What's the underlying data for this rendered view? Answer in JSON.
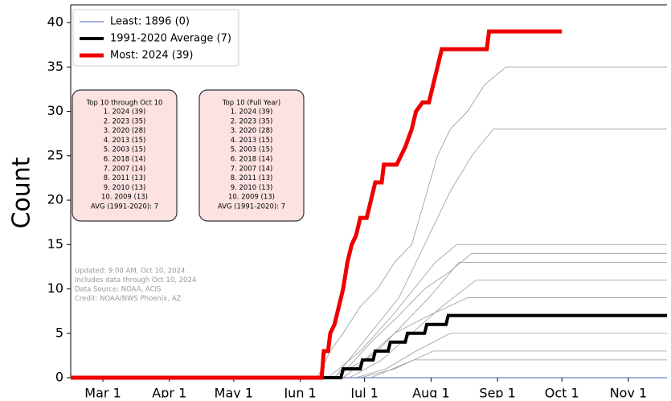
{
  "chart_data": {
    "type": "line",
    "ylabel": "Count",
    "xlim": [
      45,
      323
    ],
    "xticks": [
      {
        "value": 60,
        "label": "Mar 1"
      },
      {
        "value": 91,
        "label": "Apr 1"
      },
      {
        "value": 121,
        "label": "May 1"
      },
      {
        "value": 152,
        "label": "Jun 1"
      },
      {
        "value": 182,
        "label": "Jul 1"
      },
      {
        "value": 213,
        "label": "Aug 1"
      },
      {
        "value": 244,
        "label": "Sep 1"
      },
      {
        "value": 274,
        "label": "Oct 1"
      },
      {
        "value": 305,
        "label": "Nov 1"
      }
    ],
    "ylim": [
      0,
      42
    ],
    "yticks": [
      0,
      5,
      10,
      15,
      20,
      25,
      30,
      35,
      40
    ],
    "legend": "upper left",
    "other_color": "#9a9a9a",
    "other_series": [
      {
        "x": [
          45,
          160,
          166,
          172,
          180,
          188,
          196,
          204,
          210,
          216,
          222,
          230,
          238,
          248,
          323
        ],
        "values": [
          0,
          0,
          3,
          5,
          8,
          10,
          13,
          15,
          20,
          25,
          28,
          30,
          33,
          35,
          35
        ]
      },
      {
        "x": [
          45,
          168,
          178,
          188,
          198,
          206,
          214,
          222,
          232,
          242,
          323
        ],
        "values": [
          0,
          0,
          3,
          6,
          9,
          13,
          17,
          21,
          25,
          28,
          28
        ]
      },
      {
        "x": [
          45,
          165,
          180,
          195,
          205,
          215,
          225,
          323
        ],
        "values": [
          0,
          0,
          3,
          7,
          10,
          13,
          15,
          15
        ]
      },
      {
        "x": [
          45,
          170,
          185,
          198,
          210,
          222,
          232,
          323
        ],
        "values": [
          0,
          0,
          4,
          7,
          10,
          12,
          14,
          14
        ]
      },
      {
        "x": [
          45,
          172,
          188,
          200,
          212,
          226,
          323
        ],
        "values": [
          0,
          0,
          3,
          6,
          9,
          13,
          13
        ]
      },
      {
        "x": [
          45,
          175,
          190,
          204,
          218,
          234,
          323
        ],
        "values": [
          0,
          0,
          2,
          5,
          8,
          11,
          11
        ]
      },
      {
        "x": [
          45,
          167,
          182,
          196,
          212,
          230,
          323
        ],
        "values": [
          0,
          0,
          2,
          5,
          7,
          9,
          9
        ]
      },
      {
        "x": [
          45,
          178,
          192,
          206,
          222,
          323
        ],
        "values": [
          0,
          0,
          1,
          3,
          5,
          5
        ]
      },
      {
        "x": [
          45,
          180,
          196,
          214,
          323
        ],
        "values": [
          0,
          0,
          1,
          3,
          3
        ]
      },
      {
        "x": [
          45,
          185,
          205,
          323
        ],
        "values": [
          0,
          0,
          2,
          2
        ]
      }
    ],
    "series": [
      {
        "name": "Least: 1896 (0)",
        "color": "#4a5fc1",
        "width": 1,
        "x": [
          45,
          323
        ],
        "values": [
          0,
          0
        ]
      },
      {
        "name": "1991-2020 Average (7)",
        "color": "#000000",
        "width": 4,
        "x": [
          45,
          171,
          172,
          180,
          181,
          186,
          187,
          193,
          194,
          201,
          202,
          210,
          211,
          220,
          221,
          323
        ],
        "values": [
          0,
          0,
          1,
          1,
          2,
          2,
          3,
          3,
          4,
          4,
          5,
          5,
          6,
          6,
          7,
          7
        ]
      },
      {
        "name": "Most: 2024 (39)",
        "color": "#ee0000",
        "width": 5,
        "x": [
          45,
          162,
          163,
          165,
          166,
          168,
          170,
          172,
          174,
          176,
          178,
          180,
          183,
          185,
          187,
          190,
          191,
          197,
          199,
          201,
          204,
          206,
          209,
          212,
          214,
          216,
          218,
          239,
          240,
          274
        ],
        "values": [
          0,
          0,
          3,
          3,
          5,
          6,
          8,
          10,
          13,
          15,
          16,
          18,
          18,
          20,
          22,
          22,
          24,
          24,
          25,
          26,
          28,
          30,
          31,
          31,
          33,
          35,
          37,
          37,
          39,
          39
        ]
      }
    ],
    "boxes": [
      {
        "title": "Top 10 through Oct 10",
        "lines": [
          "1. 2024 (39)",
          "2. 2023 (35)",
          "3. 2020 (28)",
          "4. 2013 (15)",
          "5. 2003 (15)",
          "6. 2018 (14)",
          "7. 2007 (14)",
          "8. 2011 (13)",
          "9. 2010 (13)",
          "10. 2009 (13)",
          "AVG (1991-2020): 7"
        ]
      },
      {
        "title": "Top 10 (Full Year)",
        "lines": [
          "1. 2024 (39)",
          "2. 2023 (35)",
          "3. 2020 (28)",
          "4. 2013 (15)",
          "5. 2003 (15)",
          "6. 2018 (14)",
          "7. 2007 (14)",
          "8. 2011 (13)",
          "9. 2010 (13)",
          "10. 2009 (13)",
          "AVG (1991-2020): 7"
        ]
      }
    ],
    "notes": [
      "Updated: 9:00 AM, Oct 10, 2024",
      "Includes data through Oct 10, 2024",
      "Data Source: NOAA, ACIS",
      "Credit: NOAA/NWS Phoenix, AZ"
    ]
  }
}
